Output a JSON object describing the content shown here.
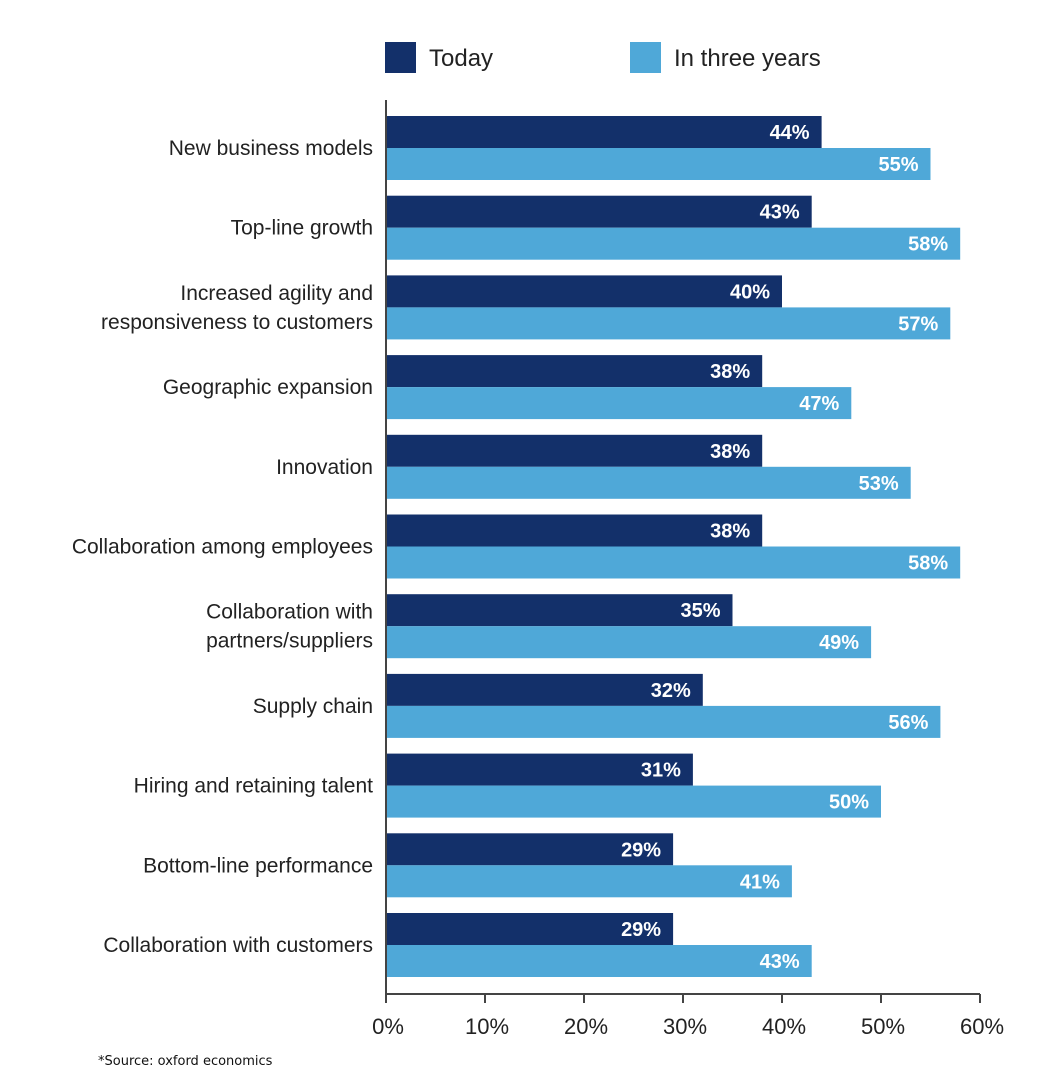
{
  "chart_data": {
    "type": "bar",
    "orientation": "horizontal",
    "title": "",
    "xlabel": "",
    "ylabel": "",
    "xlim": [
      0,
      60
    ],
    "x_ticks": [
      0,
      10,
      20,
      30,
      40,
      50,
      60
    ],
    "x_tick_labels": [
      "0%",
      "10%",
      "20%",
      "30%",
      "40%",
      "50%",
      "60%"
    ],
    "grid": false,
    "legend_position": "top",
    "categories": [
      [
        "New business models"
      ],
      [
        "Top-line growth"
      ],
      [
        "Increased agility and",
        "responsiveness to customers"
      ],
      [
        "Geographic expansion"
      ],
      [
        "Innovation"
      ],
      [
        "Collaboration among employees"
      ],
      [
        "Collaboration with",
        "partners/suppliers"
      ],
      [
        "Supply chain"
      ],
      [
        "Hiring and retaining talent"
      ],
      [
        "Bottom-line performance"
      ],
      [
        "Collaboration with customers"
      ]
    ],
    "series": [
      {
        "name": "Today",
        "color": "#13306a",
        "values": [
          44,
          43,
          40,
          38,
          38,
          38,
          35,
          32,
          31,
          29,
          29
        ],
        "labels": [
          "44%",
          "43%",
          "40%",
          "38%",
          "38%",
          "38%",
          "35%",
          "32%",
          "31%",
          "29%",
          "29%"
        ]
      },
      {
        "name": "In three years",
        "color": "#4fa8d8",
        "values": [
          55,
          58,
          57,
          47,
          53,
          58,
          49,
          56,
          50,
          41,
          43
        ],
        "labels": [
          "55%",
          "58%",
          "57%",
          "47%",
          "53%",
          "58%",
          "49%",
          "56%",
          "50%",
          "41%",
          "43%"
        ]
      }
    ]
  },
  "footnote": "*Source: oxford economics"
}
